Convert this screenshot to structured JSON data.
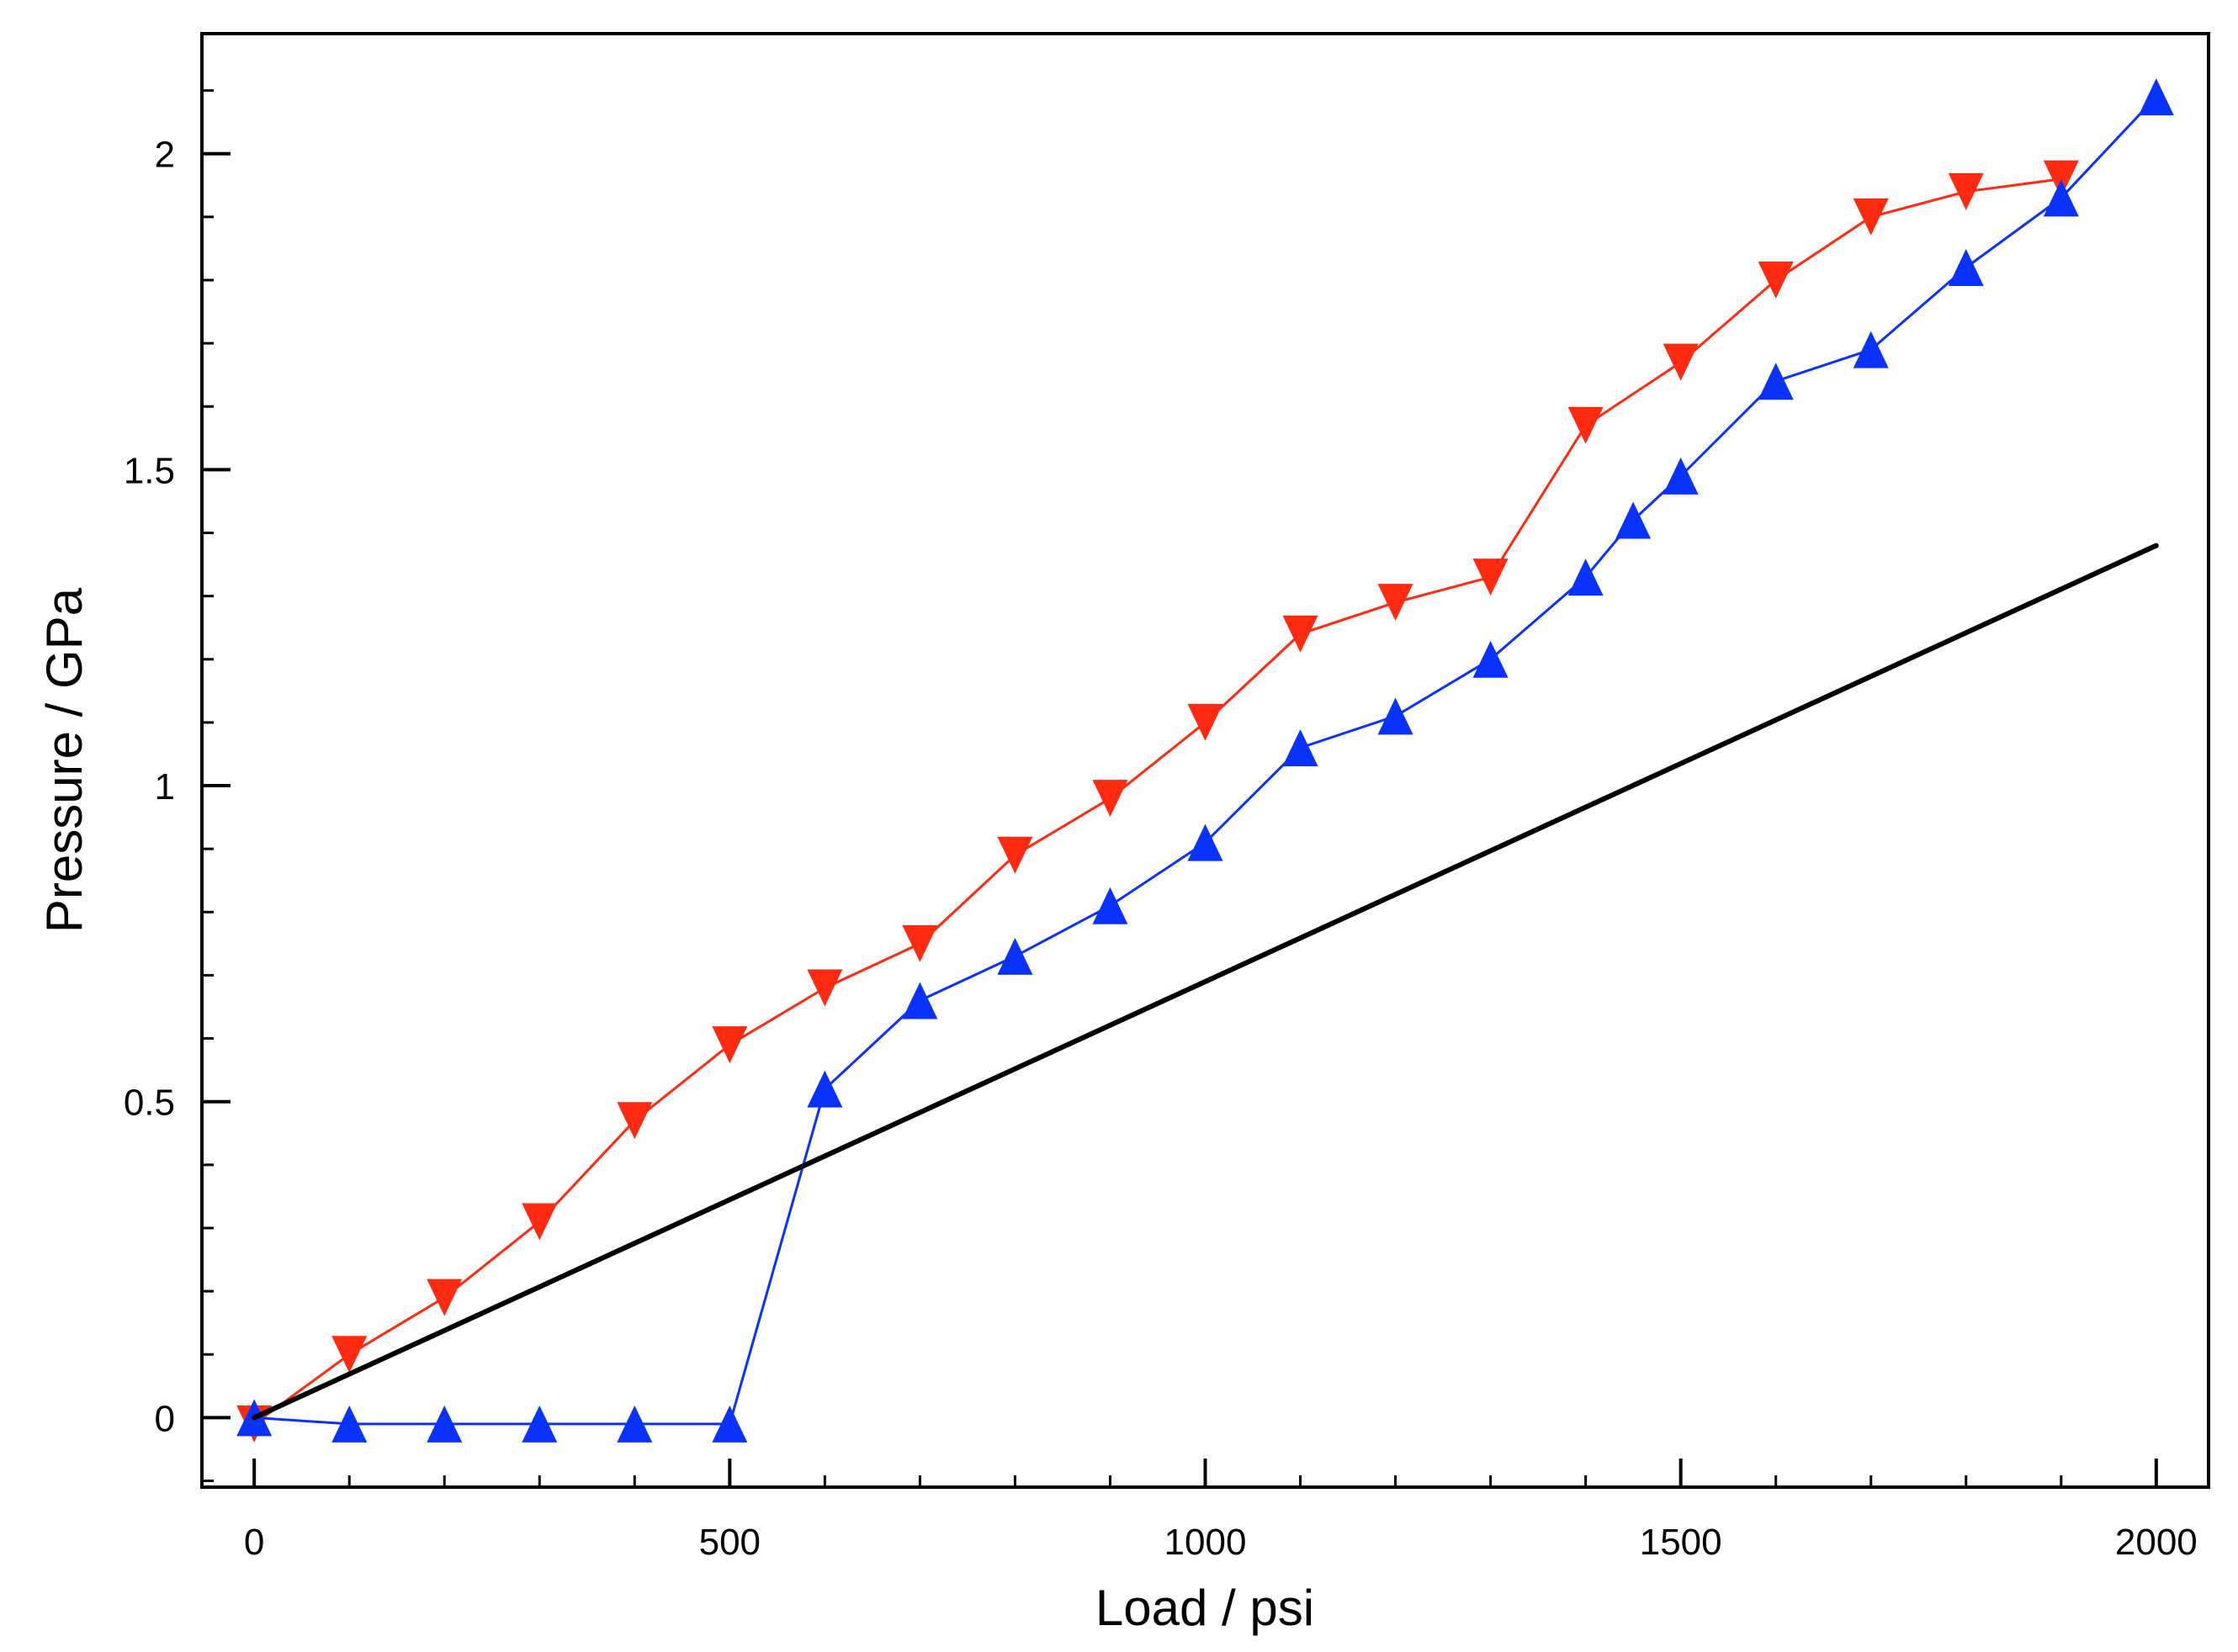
{
  "chart_data": {
    "type": "line",
    "title": "",
    "xlabel": "Load / psi",
    "ylabel": "Pressure / GPa",
    "xlim": [
      -55,
      2055
    ],
    "ylim": [
      -0.11,
      2.19
    ],
    "xticks": [
      0,
      500,
      1000,
      1500,
      2000
    ],
    "xtick_labels": [
      "0",
      "500",
      "1000",
      "1500",
      "2000"
    ],
    "x_minor_step": 100,
    "yticks": [
      0,
      0.5,
      1,
      1.5,
      2
    ],
    "ytick_labels": [
      "0",
      "0.5",
      "1",
      "1.5",
      "2"
    ],
    "y_minor_step": 0.1,
    "grid": false,
    "legend": "none",
    "series": [
      {
        "name": "red-series",
        "color": "#ff2a10",
        "marker": "triangle-down",
        "x": [
          0,
          100,
          200,
          300,
          400,
          500,
          600,
          700,
          800,
          900,
          1000,
          1100,
          1200,
          1300,
          1400,
          1500,
          1600,
          1700,
          1800,
          1900
        ],
        "y": [
          -0.01,
          0.1,
          0.19,
          0.31,
          0.47,
          0.59,
          0.68,
          0.75,
          0.89,
          0.98,
          1.1,
          1.24,
          1.29,
          1.33,
          1.57,
          1.67,
          1.8,
          1.9,
          1.94,
          1.96
        ]
      },
      {
        "name": "blue-series",
        "color": "#0a32ff",
        "marker": "triangle-up",
        "x": [
          0,
          100,
          200,
          300,
          400,
          500,
          600,
          700,
          800,
          900,
          1000,
          1100,
          1200,
          1300,
          1400,
          1450,
          1500,
          1600,
          1700,
          1800,
          1900,
          2000
        ],
        "y": [
          0.0,
          -0.01,
          -0.01,
          -0.01,
          -0.01,
          -0.01,
          0.52,
          0.66,
          0.73,
          0.81,
          0.91,
          1.06,
          1.11,
          1.2,
          1.33,
          1.42,
          1.49,
          1.64,
          1.69,
          1.82,
          1.93,
          2.09
        ]
      },
      {
        "name": "black-line",
        "color": "#000000",
        "marker": "none",
        "x": [
          0,
          2000
        ],
        "y": [
          0.0,
          1.38
        ]
      }
    ]
  }
}
